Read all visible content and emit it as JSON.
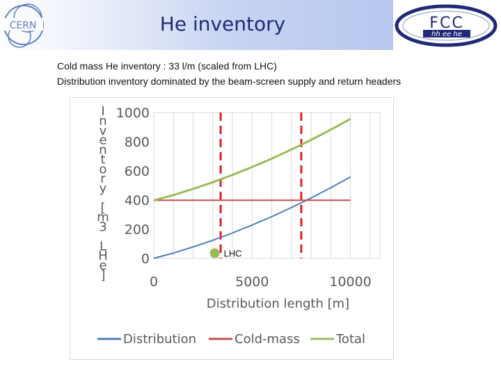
{
  "slide": {
    "title": "He inventory",
    "bullets": [
      "Cold mass He inventory : 33 l/m (scaled from LHC)",
      "Distribution inventory dominated by the beam-screen supply and return headers"
    ],
    "logos": {
      "left": {
        "text": "CERN",
        "icon": "cern-logo"
      },
      "right": {
        "text": "FCC",
        "subtext": "hh ee he",
        "icon": "fcc-logo"
      }
    }
  },
  "chart_data": {
    "type": "line",
    "title": "",
    "xlabel": "Distribution length [m]",
    "ylabel": "Inventory [m3 LHe]",
    "xlim": [
      0,
      11500
    ],
    "ylim": [
      0,
      1000
    ],
    "xticks": [
      0,
      5000,
      10000
    ],
    "yticks": [
      0,
      200,
      400,
      600,
      800,
      1000
    ],
    "grid": "vertical",
    "legend": "bottom",
    "x": [
      0,
      1000,
      2000,
      3000,
      4000,
      5000,
      6000,
      7000,
      8000,
      9000,
      10000
    ],
    "series": [
      {
        "name": "Distribution",
        "color": "#4a7ebb",
        "values": [
          0,
          36,
          78,
          124,
          174,
          228,
          286,
          348,
          414,
          484,
          558
        ]
      },
      {
        "name": "Cold-mass",
        "color": "#c0504d",
        "values": [
          398,
          398,
          398,
          398,
          398,
          398,
          398,
          398,
          398,
          398,
          398
        ]
      },
      {
        "name": "Total",
        "color": "#9bbb59",
        "values": [
          398,
          434,
          476,
          522,
          572,
          626,
          684,
          746,
          812,
          882,
          956
        ]
      }
    ],
    "markers": [
      {
        "label": "LHC",
        "x": 3100,
        "y": 35,
        "color": "#9bbb59"
      }
    ],
    "vlines": [
      {
        "x": 3400,
        "color": "#e02020",
        "style": "dashed"
      },
      {
        "x": 7500,
        "color": "#e02020",
        "style": "dashed"
      }
    ]
  }
}
